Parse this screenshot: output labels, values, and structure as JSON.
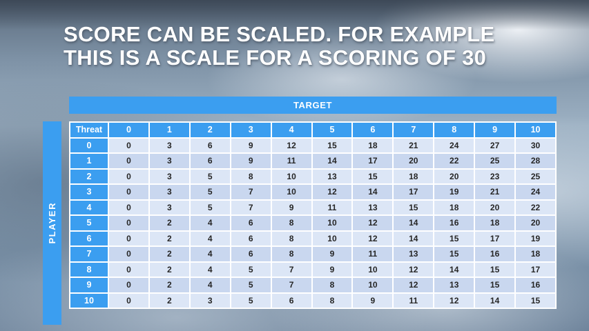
{
  "title": {
    "line1": "SCORE CAN BE SCALED. FOR EXAMPLE",
    "line2": "THIS IS A SCALE FOR A SCORING OF 30"
  },
  "table": {
    "target_label": "TARGET",
    "player_label": "PLAYER",
    "threat_label": "Threat",
    "column_headers": [
      "0",
      "1",
      "2",
      "3",
      "4",
      "5",
      "6",
      "7",
      "8",
      "9",
      "10"
    ],
    "rows": [
      {
        "header": "0",
        "values": [
          0,
          3,
          6,
          9,
          12,
          15,
          18,
          21,
          24,
          27,
          30
        ]
      },
      {
        "header": "1",
        "values": [
          0,
          3,
          6,
          9,
          11,
          14,
          17,
          20,
          22,
          25,
          28
        ]
      },
      {
        "header": "2",
        "values": [
          0,
          3,
          5,
          8,
          10,
          13,
          15,
          18,
          20,
          23,
          25
        ]
      },
      {
        "header": "3",
        "values": [
          0,
          3,
          5,
          7,
          10,
          12,
          14,
          17,
          19,
          21,
          24
        ]
      },
      {
        "header": "4",
        "values": [
          0,
          3,
          5,
          7,
          9,
          11,
          13,
          15,
          18,
          20,
          22
        ]
      },
      {
        "header": "5",
        "values": [
          0,
          2,
          4,
          6,
          8,
          10,
          12,
          14,
          16,
          18,
          20
        ]
      },
      {
        "header": "6",
        "values": [
          0,
          2,
          4,
          6,
          8,
          10,
          12,
          14,
          15,
          17,
          19
        ]
      },
      {
        "header": "7",
        "values": [
          0,
          2,
          4,
          6,
          8,
          9,
          11,
          13,
          15,
          16,
          18
        ]
      },
      {
        "header": "8",
        "values": [
          0,
          2,
          4,
          5,
          7,
          9,
          10,
          12,
          14,
          15,
          17
        ]
      },
      {
        "header": "9",
        "values": [
          0,
          2,
          4,
          5,
          7,
          8,
          10,
          12,
          13,
          15,
          16
        ]
      },
      {
        "header": "10",
        "values": [
          0,
          2,
          3,
          5,
          6,
          8,
          9,
          11,
          12,
          14,
          15
        ]
      }
    ]
  },
  "colors": {
    "accent_blue": "#3b9ef0",
    "band_light": "#dce6f6",
    "band_dark": "#c9d7ef",
    "title_text": "#ffffff"
  }
}
